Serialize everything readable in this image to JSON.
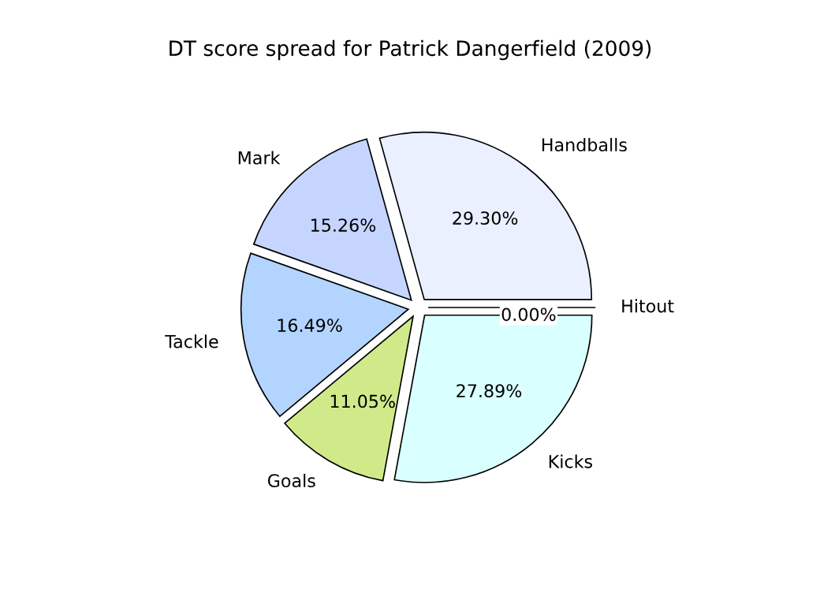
{
  "chart_data": {
    "type": "pie",
    "title": "DT score spread for Patrick Dangerfield (2009)",
    "categories": [
      "Hitout",
      "Handballs",
      "Mark",
      "Tackle",
      "Goals",
      "Kicks"
    ],
    "values": [
      0.0,
      29.3,
      15.26,
      16.49,
      11.05,
      27.89
    ],
    "value_labels": [
      "0.00%",
      "29.30%",
      "15.26%",
      "16.49%",
      "11.05%",
      "27.89%"
    ],
    "colors": [
      "#ffffff",
      "#eaf0ff",
      "#c5d5ff",
      "#b3d4ff",
      "#d0ea8a",
      "#d9ffff"
    ]
  }
}
